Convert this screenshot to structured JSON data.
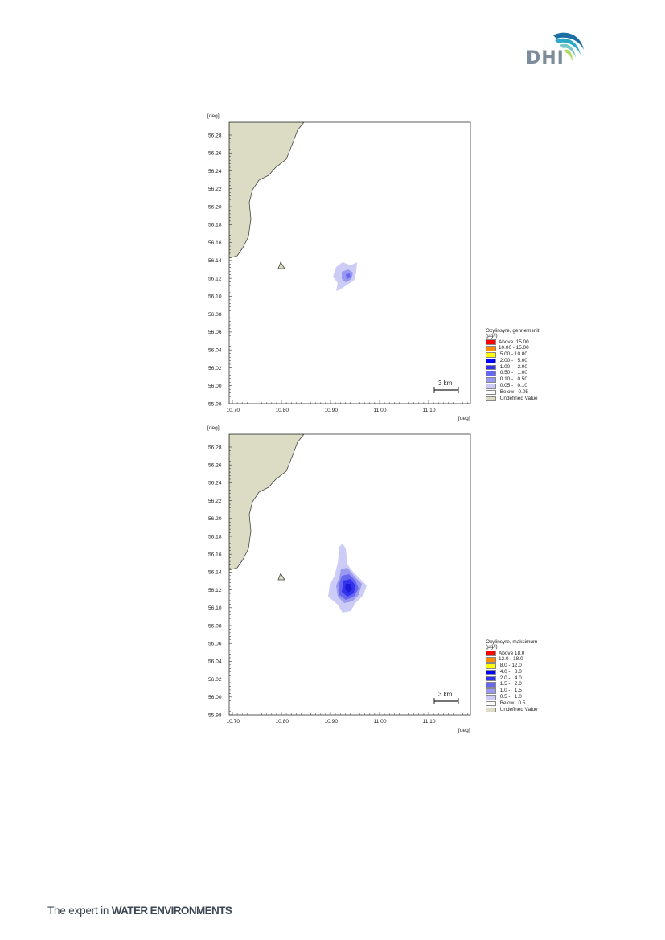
{
  "header": {
    "logo_text": "DHI",
    "logo_colors": [
      "#1d6fa3",
      "#2aa9c9",
      "#74c9c6",
      "#b7d86b"
    ]
  },
  "footer": {
    "tagline_prefix": "The expert in",
    "tagline_bold": "WATER ENVIRONMENTS"
  },
  "map_common": {
    "axis_unit": "[deg]",
    "x_ticks": [
      "10.70",
      "10.80",
      "10.90",
      "11.00",
      "11.10"
    ],
    "y_ticks": [
      "56.28",
      "56.26",
      "56.24",
      "56.22",
      "56.20",
      "56.18",
      "56.16",
      "56.14",
      "56.12",
      "56.10",
      "56.08",
      "56.06",
      "56.04",
      "56.02",
      "56.00",
      "55.98"
    ],
    "scale_bar_label": "3 km",
    "land_color": "#dcdcc4"
  },
  "legend_top": {
    "title": "Oxylinsyre, gennemsnit",
    "unit": "(µg/l)",
    "items": [
      {
        "label": "Above  15.00",
        "color": "#ff0000"
      },
      {
        "label": "10.00 - 15.00",
        "color": "#ff8c00"
      },
      {
        "label": " 5.00 - 10.00",
        "color": "#ffff00"
      },
      {
        "label": " 2.00 -   5.00",
        "color": "#0000ff"
      },
      {
        "label": " 1.00 -   2.00",
        "color": "#3333ee"
      },
      {
        "label": " 0.50 -   1.00",
        "color": "#6666ee"
      },
      {
        "label": " 0.10 -   0.50",
        "color": "#9999f0"
      },
      {
        "label": " 0.05 -   0.10",
        "color": "#ccccf7"
      },
      {
        "label": " Below   0.05",
        "color": "#ffffff"
      },
      {
        "label": " Undefined Value",
        "color": "#dcdcc4"
      }
    ]
  },
  "legend_bottom": {
    "title": "Oxylinsyre, maksimum",
    "unit": "(µg/l)",
    "items": [
      {
        "label": "Above 18.0",
        "color": "#ff0000"
      },
      {
        "label": "12.0 - 18.0",
        "color": "#ff8c00"
      },
      {
        "label": " 8.0 - 12.0",
        "color": "#ffff00"
      },
      {
        "label": " 4.0 -   8.0",
        "color": "#0000ff"
      },
      {
        "label": " 2.0 -   4.0",
        "color": "#3333ee"
      },
      {
        "label": " 1.5 -   2.0",
        "color": "#6666ee"
      },
      {
        "label": " 1.0 -   1.5",
        "color": "#9999f0"
      },
      {
        "label": " 0.5 -   1.0",
        "color": "#ccccf7"
      },
      {
        "label": " Below   0.5",
        "color": "#ffffff"
      },
      {
        "label": " Undefined Value",
        "color": "#dcdcc4"
      }
    ]
  }
}
